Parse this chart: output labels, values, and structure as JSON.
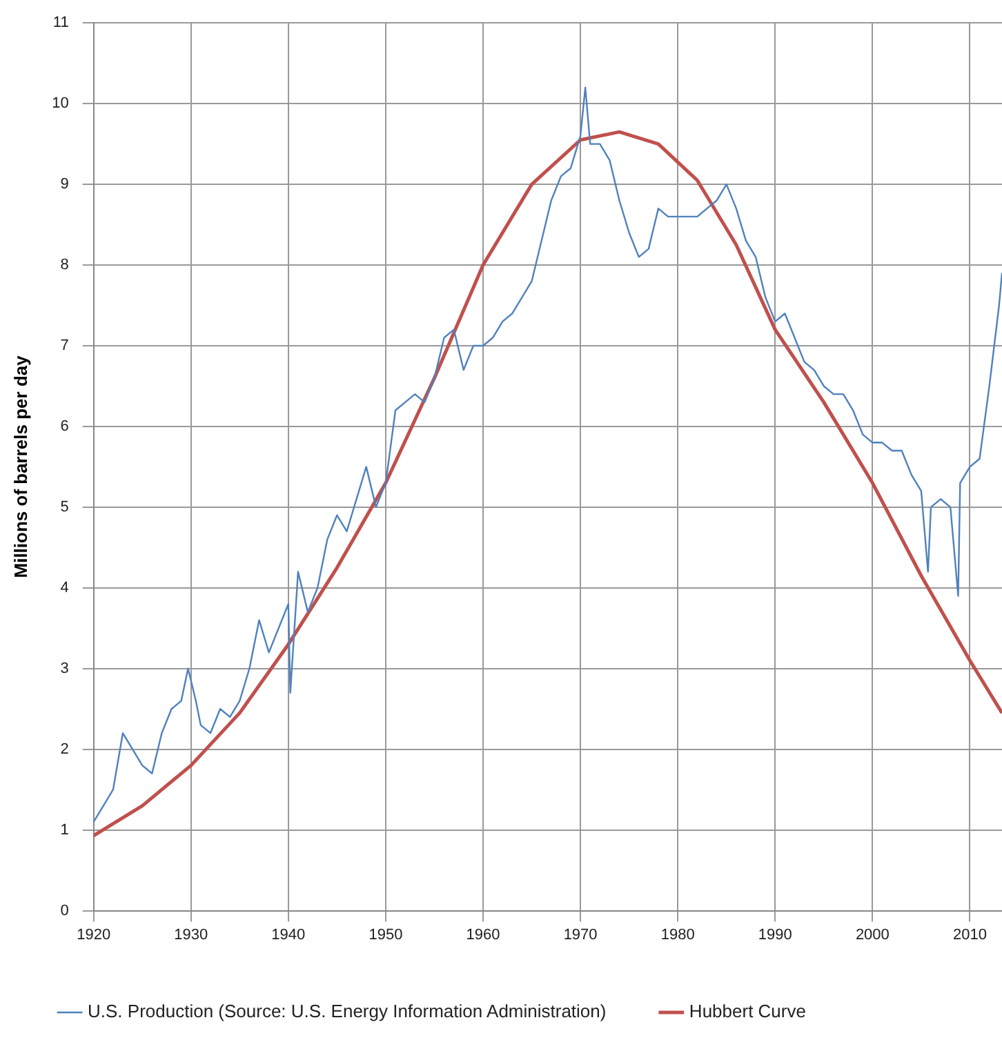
{
  "chart_data": {
    "type": "line",
    "ylabel": "Millions of barrels per day",
    "xlim": [
      1920,
      2013.3
    ],
    "xticks": [
      1920,
      1930,
      1940,
      1950,
      1960,
      1970,
      1980,
      1990,
      2000,
      2010
    ],
    "ylim": [
      0,
      11
    ],
    "yticks": [
      0,
      1,
      2,
      3,
      4,
      5,
      6,
      7,
      8,
      9,
      10,
      11
    ],
    "grid": true,
    "legend": "bottom",
    "marker": "none",
    "line_style": "solid",
    "series": [
      {
        "name": "U.S. Production (Source: U.S. Energy Information Administration)",
        "color": "#4f81bd",
        "x": [
          1920,
          1921,
          1922,
          1923,
          1924,
          1925,
          1926,
          1927,
          1928,
          1929,
          1929.7,
          1930.5,
          1931,
          1932,
          1933,
          1934,
          1935,
          1936,
          1937,
          1938,
          1939,
          1940,
          1940.2,
          1941,
          1942,
          1943,
          1944,
          1945,
          1946,
          1947,
          1948,
          1949,
          1950,
          1951,
          1952,
          1953,
          1954,
          1955,
          1956,
          1957,
          1958,
          1959,
          1960,
          1961,
          1962,
          1963,
          1964,
          1965,
          1966,
          1967,
          1968,
          1969,
          1970,
          1970.5,
          1971,
          1972,
          1973,
          1974,
          1975,
          1976,
          1977,
          1978,
          1979,
          1980,
          1981,
          1982,
          1983,
          1984,
          1985,
          1986,
          1987,
          1988,
          1989,
          1990,
          1991,
          1992,
          1993,
          1994,
          1995,
          1996,
          1997,
          1998,
          1999,
          2000,
          2001,
          2002,
          2003,
          2004,
          2005,
          2005.7,
          2006,
          2007,
          2008,
          2008.8,
          2009,
          2010,
          2011,
          2012,
          2013,
          2013.3
        ],
        "values": [
          1.1,
          1.3,
          1.5,
          2.2,
          2.0,
          1.8,
          1.7,
          2.2,
          2.5,
          2.6,
          3.0,
          2.6,
          2.3,
          2.2,
          2.5,
          2.4,
          2.6,
          3.0,
          3.6,
          3.2,
          3.5,
          3.8,
          2.7,
          4.2,
          3.7,
          4.0,
          4.6,
          4.9,
          4.7,
          5.1,
          5.5,
          5.0,
          5.3,
          6.2,
          6.3,
          6.4,
          6.3,
          6.6,
          7.1,
          7.2,
          6.7,
          7.0,
          7.0,
          7.1,
          7.3,
          7.4,
          7.6,
          7.8,
          8.3,
          8.8,
          9.1,
          9.2,
          9.6,
          10.2,
          9.5,
          9.5,
          9.3,
          8.8,
          8.4,
          8.1,
          8.2,
          8.7,
          8.6,
          8.6,
          8.6,
          8.6,
          8.7,
          8.8,
          9.0,
          8.7,
          8.3,
          8.1,
          7.6,
          7.3,
          7.4,
          7.1,
          6.8,
          6.7,
          6.5,
          6.4,
          6.4,
          6.2,
          5.9,
          5.8,
          5.8,
          5.7,
          5.7,
          5.4,
          5.2,
          4.2,
          5.0,
          5.1,
          5.0,
          3.9,
          5.3,
          5.5,
          5.6,
          6.5,
          7.5,
          7.9
        ]
      },
      {
        "name": "Hubbert Curve",
        "color": "#c0504d",
        "x": [
          1920,
          1925,
          1930,
          1935,
          1940,
          1945,
          1950,
          1955,
          1960,
          1965,
          1970,
          1974,
          1978,
          1982,
          1986,
          1990,
          1995,
          2000,
          2005,
          2010,
          2013.3
        ],
        "values": [
          0.93,
          1.3,
          1.8,
          2.45,
          3.3,
          4.25,
          5.3,
          6.6,
          8.0,
          9.0,
          9.55,
          9.65,
          9.5,
          9.05,
          8.25,
          7.2,
          6.3,
          5.3,
          4.15,
          3.1,
          2.45
        ]
      }
    ]
  }
}
